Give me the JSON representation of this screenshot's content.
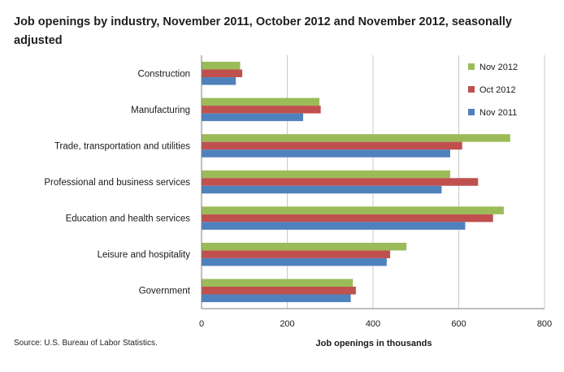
{
  "title": "Job openings by industry, November 2011, October 2012 and November 2012, seasonally adjusted",
  "source": "Source: U.S. Bureau of Labor Statistics.",
  "chart_data": {
    "type": "bar",
    "orientation": "horizontal",
    "title": "Job openings by industry, November 2011, October 2012 and November 2012, seasonally adjusted",
    "xlabel": "Job openings in thousands",
    "ylabel": "",
    "xlim": [
      0,
      800
    ],
    "xticks": [
      0,
      200,
      400,
      600,
      800
    ],
    "grid": true,
    "legend_position": "top-right",
    "categories": [
      "Construction",
      "Manufacturing",
      "Trade, transportation and utilities",
      "Professional and business services",
      "Education and health services",
      "Leisure and hospitality",
      "Government"
    ],
    "series": [
      {
        "name": "Nov 2012",
        "color": "#9bbb59",
        "values": [
          90,
          275,
          720,
          580,
          705,
          478,
          353
        ]
      },
      {
        "name": "Oct 2012",
        "color": "#c0504d",
        "values": [
          95,
          278,
          608,
          645,
          680,
          440,
          360
        ]
      },
      {
        "name": "Nov 2011",
        "color": "#4f81bd",
        "values": [
          80,
          237,
          580,
          560,
          615,
          432,
          348
        ]
      }
    ]
  }
}
